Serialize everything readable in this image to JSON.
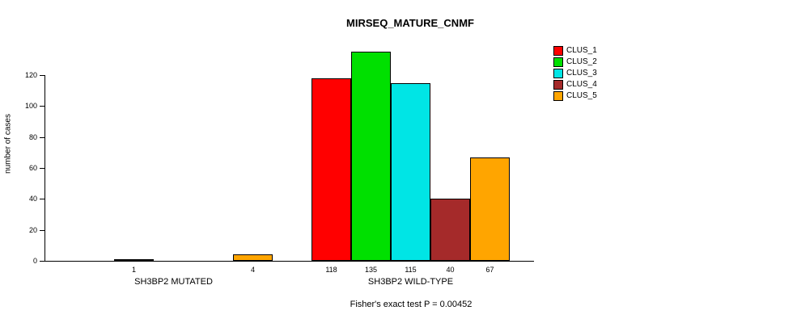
{
  "chart_data": {
    "type": "bar",
    "title": "MIRSEQ_MATURE_CNMF",
    "ylabel": "number of cases",
    "annotation": "Fisher's exact test P = 0.00452",
    "categories": [
      "SH3BP2 MUTATED",
      "SH3BP2 WILD-TYPE"
    ],
    "series": [
      {
        "name": "CLUS_1",
        "color": "#ff0000",
        "values": [
          0,
          118
        ]
      },
      {
        "name": "CLUS_2",
        "color": "#00e000",
        "values": [
          1,
          135
        ]
      },
      {
        "name": "CLUS_3",
        "color": "#00e5e5",
        "values": [
          0,
          115
        ]
      },
      {
        "name": "CLUS_4",
        "color": "#a52a2a",
        "values": [
          0,
          40
        ]
      },
      {
        "name": "CLUS_5",
        "color": "#ffa500",
        "values": [
          4,
          67
        ]
      }
    ],
    "bar_labels": [
      [
        "",
        "1",
        "",
        "",
        "4"
      ],
      [
        "118",
        "135",
        "115",
        "40",
        "67"
      ]
    ],
    "yticks": [
      0,
      20,
      40,
      60,
      80,
      100,
      120
    ],
    "ylim": [
      0,
      140
    ],
    "grid": false,
    "legend_position": "top-right"
  }
}
